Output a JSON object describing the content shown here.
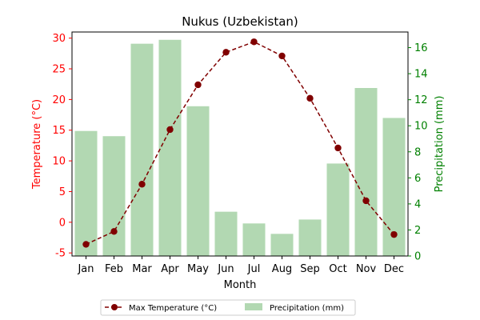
{
  "chart_data": {
    "type": "bar+line",
    "title": "Nukus (Uzbekistan)",
    "xlabel": "Month",
    "categories": [
      "Jan",
      "Feb",
      "Mar",
      "Apr",
      "May",
      "Jun",
      "Jul",
      "Aug",
      "Sep",
      "Oct",
      "Nov",
      "Dec"
    ],
    "left_axis": {
      "label": "Temperature (°C)",
      "color": "#ff0000",
      "ylim": [
        -5.5,
        31
      ],
      "ticks": [
        -5,
        0,
        5,
        10,
        15,
        20,
        25,
        30
      ]
    },
    "right_axis": {
      "label": "Precipitation (mm)",
      "color": "#008000",
      "ylim": [
        0,
        17.2
      ],
      "ticks": [
        0,
        2,
        4,
        6,
        8,
        10,
        12,
        14,
        16
      ]
    },
    "series": [
      {
        "name": "Max Temperature (°C)",
        "kind": "line",
        "axis": "left",
        "color": "#800000",
        "style": "dashed-marker",
        "values": [
          -3.6,
          -1.5,
          6.2,
          15.1,
          22.4,
          27.7,
          29.4,
          27.1,
          20.2,
          12.1,
          3.5,
          -2.0
        ]
      },
      {
        "name": "Precipitation (mm)",
        "kind": "bar",
        "axis": "right",
        "color": "#b2d8b2",
        "values": [
          9.6,
          9.2,
          16.3,
          16.6,
          11.5,
          3.4,
          2.5,
          1.7,
          2.8,
          7.1,
          12.9,
          10.6
        ]
      }
    ],
    "legend_position": "bottom-center"
  }
}
